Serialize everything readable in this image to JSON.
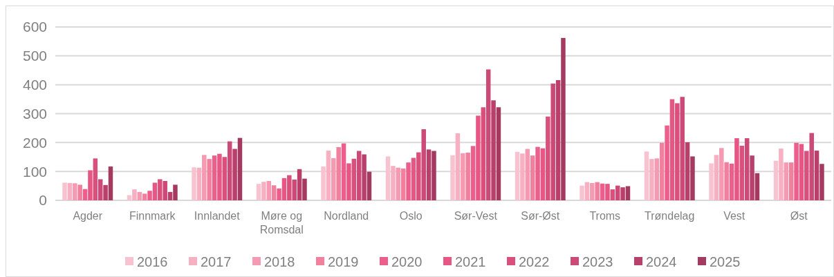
{
  "chart_data": {
    "type": "bar",
    "categories": [
      "Agder",
      "Finnmark",
      "Innlandet",
      "Møre og Romsdal",
      "Nordland",
      "Oslo",
      "Sør-Vest",
      "Sør-Øst",
      "Troms",
      "Trøndelag",
      "Vest",
      "Øst"
    ],
    "ylim": [
      0,
      600
    ],
    "yticks": [
      0,
      100,
      200,
      300,
      400,
      500,
      600
    ],
    "grid": "y",
    "legend": "bottom",
    "series": [
      {
        "name": "2016",
        "color": "#f8c3d0",
        "values": [
          61,
          18,
          114,
          57,
          117,
          152,
          156,
          168,
          51,
          169,
          128,
          137
        ]
      },
      {
        "name": "2017",
        "color": "#f6b0c1",
        "values": [
          60,
          38,
          113,
          64,
          172,
          119,
          232,
          162,
          63,
          143,
          157,
          179
        ]
      },
      {
        "name": "2018",
        "color": "#f49ab2",
        "values": [
          59,
          29,
          157,
          67,
          146,
          113,
          163,
          178,
          60,
          145,
          181,
          131
        ]
      },
      {
        "name": "2019",
        "color": "#f0809e",
        "values": [
          54,
          23,
          143,
          52,
          184,
          110,
          165,
          155,
          63,
          199,
          132,
          131
        ]
      },
      {
        "name": "2020",
        "color": "#ec5f8c",
        "values": [
          39,
          33,
          155,
          41,
          197,
          131,
          188,
          185,
          58,
          259,
          127,
          199
        ]
      },
      {
        "name": "2021",
        "color": "#e65786",
        "values": [
          104,
          61,
          161,
          77,
          128,
          147,
          293,
          180,
          57,
          350,
          215,
          195
        ]
      },
      {
        "name": "2022",
        "color": "#d9507c",
        "values": [
          145,
          73,
          150,
          87,
          144,
          166,
          322,
          290,
          38,
          336,
          189,
          171
        ]
      },
      {
        "name": "2023",
        "color": "#cc4a78",
        "values": [
          73,
          67,
          204,
          72,
          171,
          246,
          453,
          404,
          51,
          358,
          215,
          233
        ]
      },
      {
        "name": "2024",
        "color": "#b8406a",
        "values": [
          53,
          29,
          178,
          108,
          159,
          176,
          346,
          416,
          45,
          201,
          155,
          172
        ]
      },
      {
        "name": "2025",
        "color": "#a53a60",
        "values": [
          117,
          54,
          216,
          75,
          99,
          171,
          322,
          562,
          49,
          152,
          94,
          126
        ]
      }
    ]
  }
}
